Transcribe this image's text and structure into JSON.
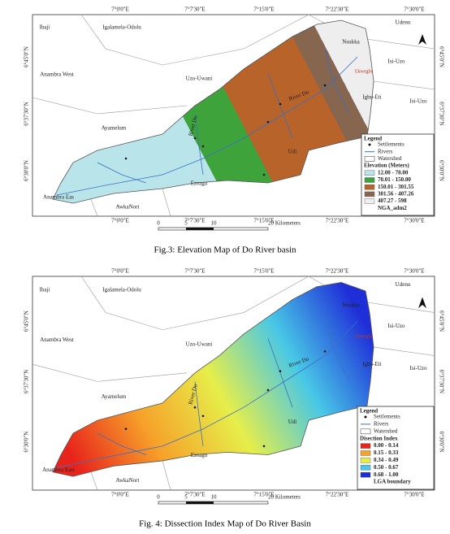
{
  "figures": [
    {
      "top_labels": [
        "7°0'0\"E",
        "7°7'30\"E",
        "7°15'0\"E",
        "7°22'30\"E",
        "7°30'0\"E"
      ],
      "side_labels": [
        "6°45'0\"N",
        "6°37'30\"N",
        "6°30'0\"N"
      ],
      "places": [
        "Ibaji",
        "Igalamela-Odolu",
        "Udenu",
        "Nsukka",
        "Isi-Uzo",
        "Uzo-Uwani",
        "Igbo-Eti",
        "Isi-Uzo",
        "Anambra West",
        "Ayamelum",
        "Udi",
        "Ezeagu",
        "Anambra Eas",
        "AwkaNort"
      ],
      "rivers": [
        "River Do",
        "River Do"
      ],
      "settlements": [
        "Ekwegbe"
      ],
      "legend": {
        "title": "Legend",
        "items": [
          "Settlements",
          "Rivers",
          "Watershed"
        ],
        "class_title": "Elevation (Meters)",
        "classes": [
          {
            "label": "12.00 - 70.00",
            "color": "#b9e5ea"
          },
          {
            "label": "70.01 - 150.00",
            "color": "#3ea33a"
          },
          {
            "label": "150.01 - 301.55",
            "color": "#b8632a"
          },
          {
            "label": "301.56 - 407.26",
            "color": "#876650"
          },
          {
            "label": "407.27 - 598",
            "color": "#eeeeee"
          }
        ],
        "boundary": "NGA_adm2"
      },
      "scale": [
        "0",
        "5",
        "10",
        "20 Kilometers"
      ],
      "caption": "Fig.3: Elevation Map of Do River basin"
    },
    {
      "top_labels": [
        "7°0'0\"E",
        "7°7'30\"E",
        "7°15'0\"E",
        "7°22'30\"E",
        "7°30'0\"E"
      ],
      "side_labels": [
        "6°45'0\"N",
        "6°37'30\"N",
        "6°30'0\"N"
      ],
      "places": [
        "Ibaji",
        "Igalamela-Odolu",
        "Udenu",
        "Nsukka",
        "Isi-Uzo",
        "Uzo-Uwani",
        "Igbo-Eti",
        "Isi-Uzo",
        "Anambra West",
        "Ayamelum",
        "Udi",
        "Ezeagu",
        "Anambra East",
        "AwkaNort"
      ],
      "rivers": [
        "River Do",
        "River Do"
      ],
      "settlements": [
        "Ekwegbe"
      ],
      "legend": {
        "title": "Legend",
        "items": [
          "Settlements",
          "Rivers",
          "Watershed"
        ],
        "class_title": "Disection Index",
        "classes": [
          {
            "label": "0.00 - 0.14",
            "color": "#e8231c"
          },
          {
            "label": "0.15 - 0.33",
            "color": "#f6a22a"
          },
          {
            "label": "0.34 - 0.49",
            "color": "#e6ee4a"
          },
          {
            "label": "0.50 - 0.67",
            "color": "#48c8e6"
          },
          {
            "label": "0.68 - 1.00",
            "color": "#1f2fd8"
          }
        ],
        "boundary": "LGA boundary"
      },
      "scale": [
        "0",
        "5",
        "10",
        "20 Kilometers"
      ],
      "caption": "Fig. 4: Dissection Index Map of Do River Basin"
    }
  ]
}
